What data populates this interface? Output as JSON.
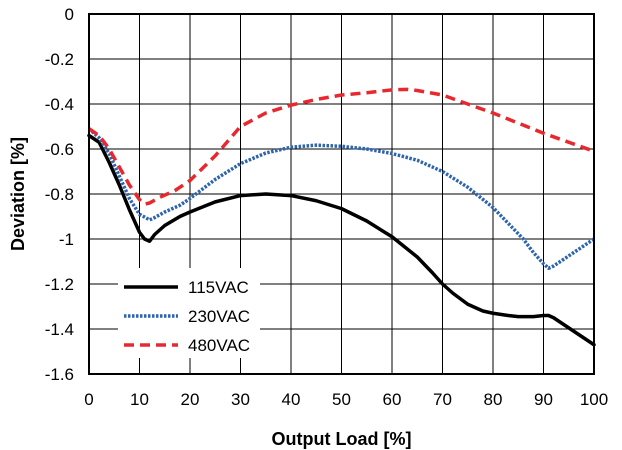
{
  "chart_data": {
    "type": "line",
    "title": "",
    "xlabel": "Output Load [%]",
    "ylabel": "Deviation [%]",
    "xlim": [
      0,
      100
    ],
    "ylim": [
      -1.6,
      0
    ],
    "xticks": [
      0,
      10,
      20,
      30,
      40,
      50,
      60,
      70,
      80,
      90,
      100
    ],
    "yticks": [
      0,
      -0.2,
      -0.4,
      -0.6,
      -0.8,
      -1,
      -1.2,
      -1.4,
      -1.6
    ],
    "xtick_labels": [
      "0",
      "10",
      "20",
      "30",
      "40",
      "50",
      "60",
      "70",
      "80",
      "90",
      "100"
    ],
    "ytick_labels": [
      "0",
      "-0.2",
      "-0.4",
      "-0.6",
      "-0.8",
      "-1",
      "-1.2",
      "-1.4",
      "-1.6"
    ],
    "grid": true,
    "legend_position": "bottom-left",
    "series": [
      {
        "name": "115VAC",
        "color": "#000000",
        "style": "solid",
        "x": [
          0,
          2,
          4,
          6,
          8,
          10,
          11,
          12,
          13,
          15,
          18,
          20,
          25,
          30,
          35,
          40,
          45,
          50,
          55,
          60,
          65,
          68,
          70,
          72,
          75,
          78,
          80,
          83,
          85,
          88,
          90,
          91,
          92,
          94,
          96,
          98,
          100
        ],
        "y": [
          -0.54,
          -0.57,
          -0.66,
          -0.76,
          -0.87,
          -0.97,
          -1.0,
          -1.01,
          -0.98,
          -0.94,
          -0.9,
          -0.88,
          -0.835,
          -0.807,
          -0.8,
          -0.807,
          -0.83,
          -0.865,
          -0.92,
          -0.99,
          -1.08,
          -1.15,
          -1.2,
          -1.24,
          -1.29,
          -1.32,
          -1.33,
          -1.34,
          -1.345,
          -1.345,
          -1.34,
          -1.34,
          -1.35,
          -1.38,
          -1.41,
          -1.44,
          -1.47
        ]
      },
      {
        "name": "230VAC",
        "color": "#2e64ad",
        "style": "dotted",
        "x": [
          0,
          2,
          4,
          6,
          8,
          10,
          12,
          13,
          15,
          18,
          20,
          25,
          30,
          35,
          40,
          45,
          50,
          55,
          60,
          65,
          70,
          75,
          80,
          83,
          86,
          88,
          90,
          91,
          92,
          94,
          96,
          98,
          100
        ],
        "y": [
          -0.51,
          -0.55,
          -0.62,
          -0.72,
          -0.82,
          -0.89,
          -0.915,
          -0.905,
          -0.88,
          -0.85,
          -0.82,
          -0.735,
          -0.665,
          -0.618,
          -0.592,
          -0.583,
          -0.588,
          -0.6,
          -0.62,
          -0.65,
          -0.7,
          -0.77,
          -0.86,
          -0.93,
          -1.0,
          -1.06,
          -1.11,
          -1.13,
          -1.12,
          -1.09,
          -1.06,
          -1.03,
          -1.0
        ]
      },
      {
        "name": "480VAC",
        "color": "#e8282e",
        "style": "dashed",
        "x": [
          0,
          2,
          4,
          6,
          8,
          10,
          11,
          12,
          14,
          17,
          20,
          25,
          30,
          35,
          40,
          45,
          50,
          55,
          60,
          63,
          65,
          70,
          75,
          80,
          85,
          90,
          95,
          100
        ],
        "y": [
          -0.51,
          -0.54,
          -0.6,
          -0.68,
          -0.76,
          -0.825,
          -0.845,
          -0.84,
          -0.815,
          -0.785,
          -0.74,
          -0.63,
          -0.5,
          -0.44,
          -0.405,
          -0.38,
          -0.36,
          -0.35,
          -0.337,
          -0.335,
          -0.34,
          -0.36,
          -0.4,
          -0.44,
          -0.485,
          -0.53,
          -0.57,
          -0.61
        ]
      }
    ]
  }
}
